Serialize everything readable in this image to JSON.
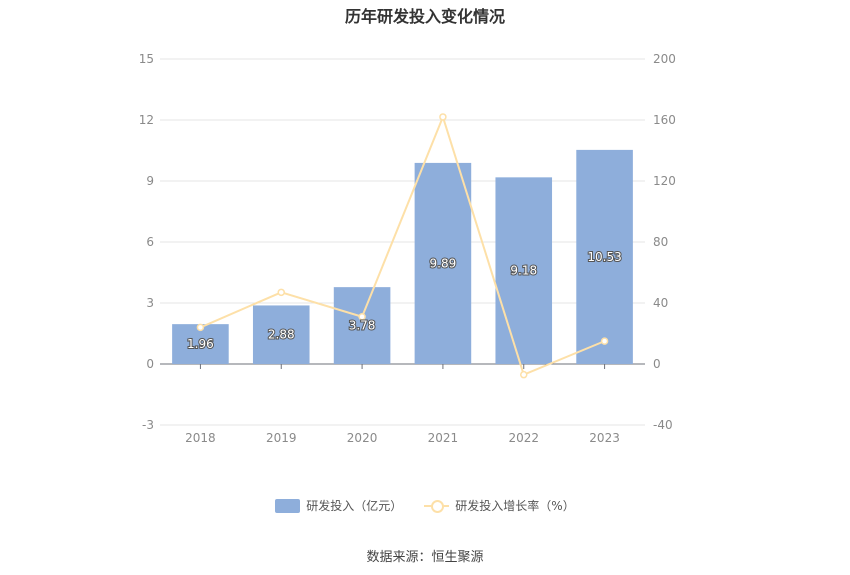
{
  "chart_data": {
    "type": "bar",
    "title": "历年研发投入变化情况",
    "categories": [
      "2018",
      "2019",
      "2020",
      "2021",
      "2022",
      "2023"
    ],
    "series": [
      {
        "name": "研发投入（亿元）",
        "type": "bar",
        "axis": "left",
        "values": [
          1.96,
          2.88,
          3.78,
          9.89,
          9.18,
          10.53
        ],
        "color": "#8eaedb"
      },
      {
        "name": "研发投入增长率（%）",
        "type": "line",
        "axis": "right",
        "values": [
          24,
          47,
          31,
          162,
          -7,
          15
        ],
        "color": "#fde0a8"
      }
    ],
    "y_left": {
      "min": -3,
      "max": 15,
      "ticks": [
        "-3",
        "0",
        "3",
        "6",
        "9",
        "12",
        "15"
      ]
    },
    "y_right": {
      "min": -40,
      "max": 200,
      "ticks": [
        "-40",
        "0",
        "40",
        "80",
        "120",
        "160",
        "200"
      ]
    },
    "grid": true,
    "legend_position": "bottom"
  },
  "legend": {
    "bar_label": "研发投入（亿元）",
    "line_label": "研发投入增长率（%）"
  },
  "source_text": "数据来源：恒生聚源"
}
